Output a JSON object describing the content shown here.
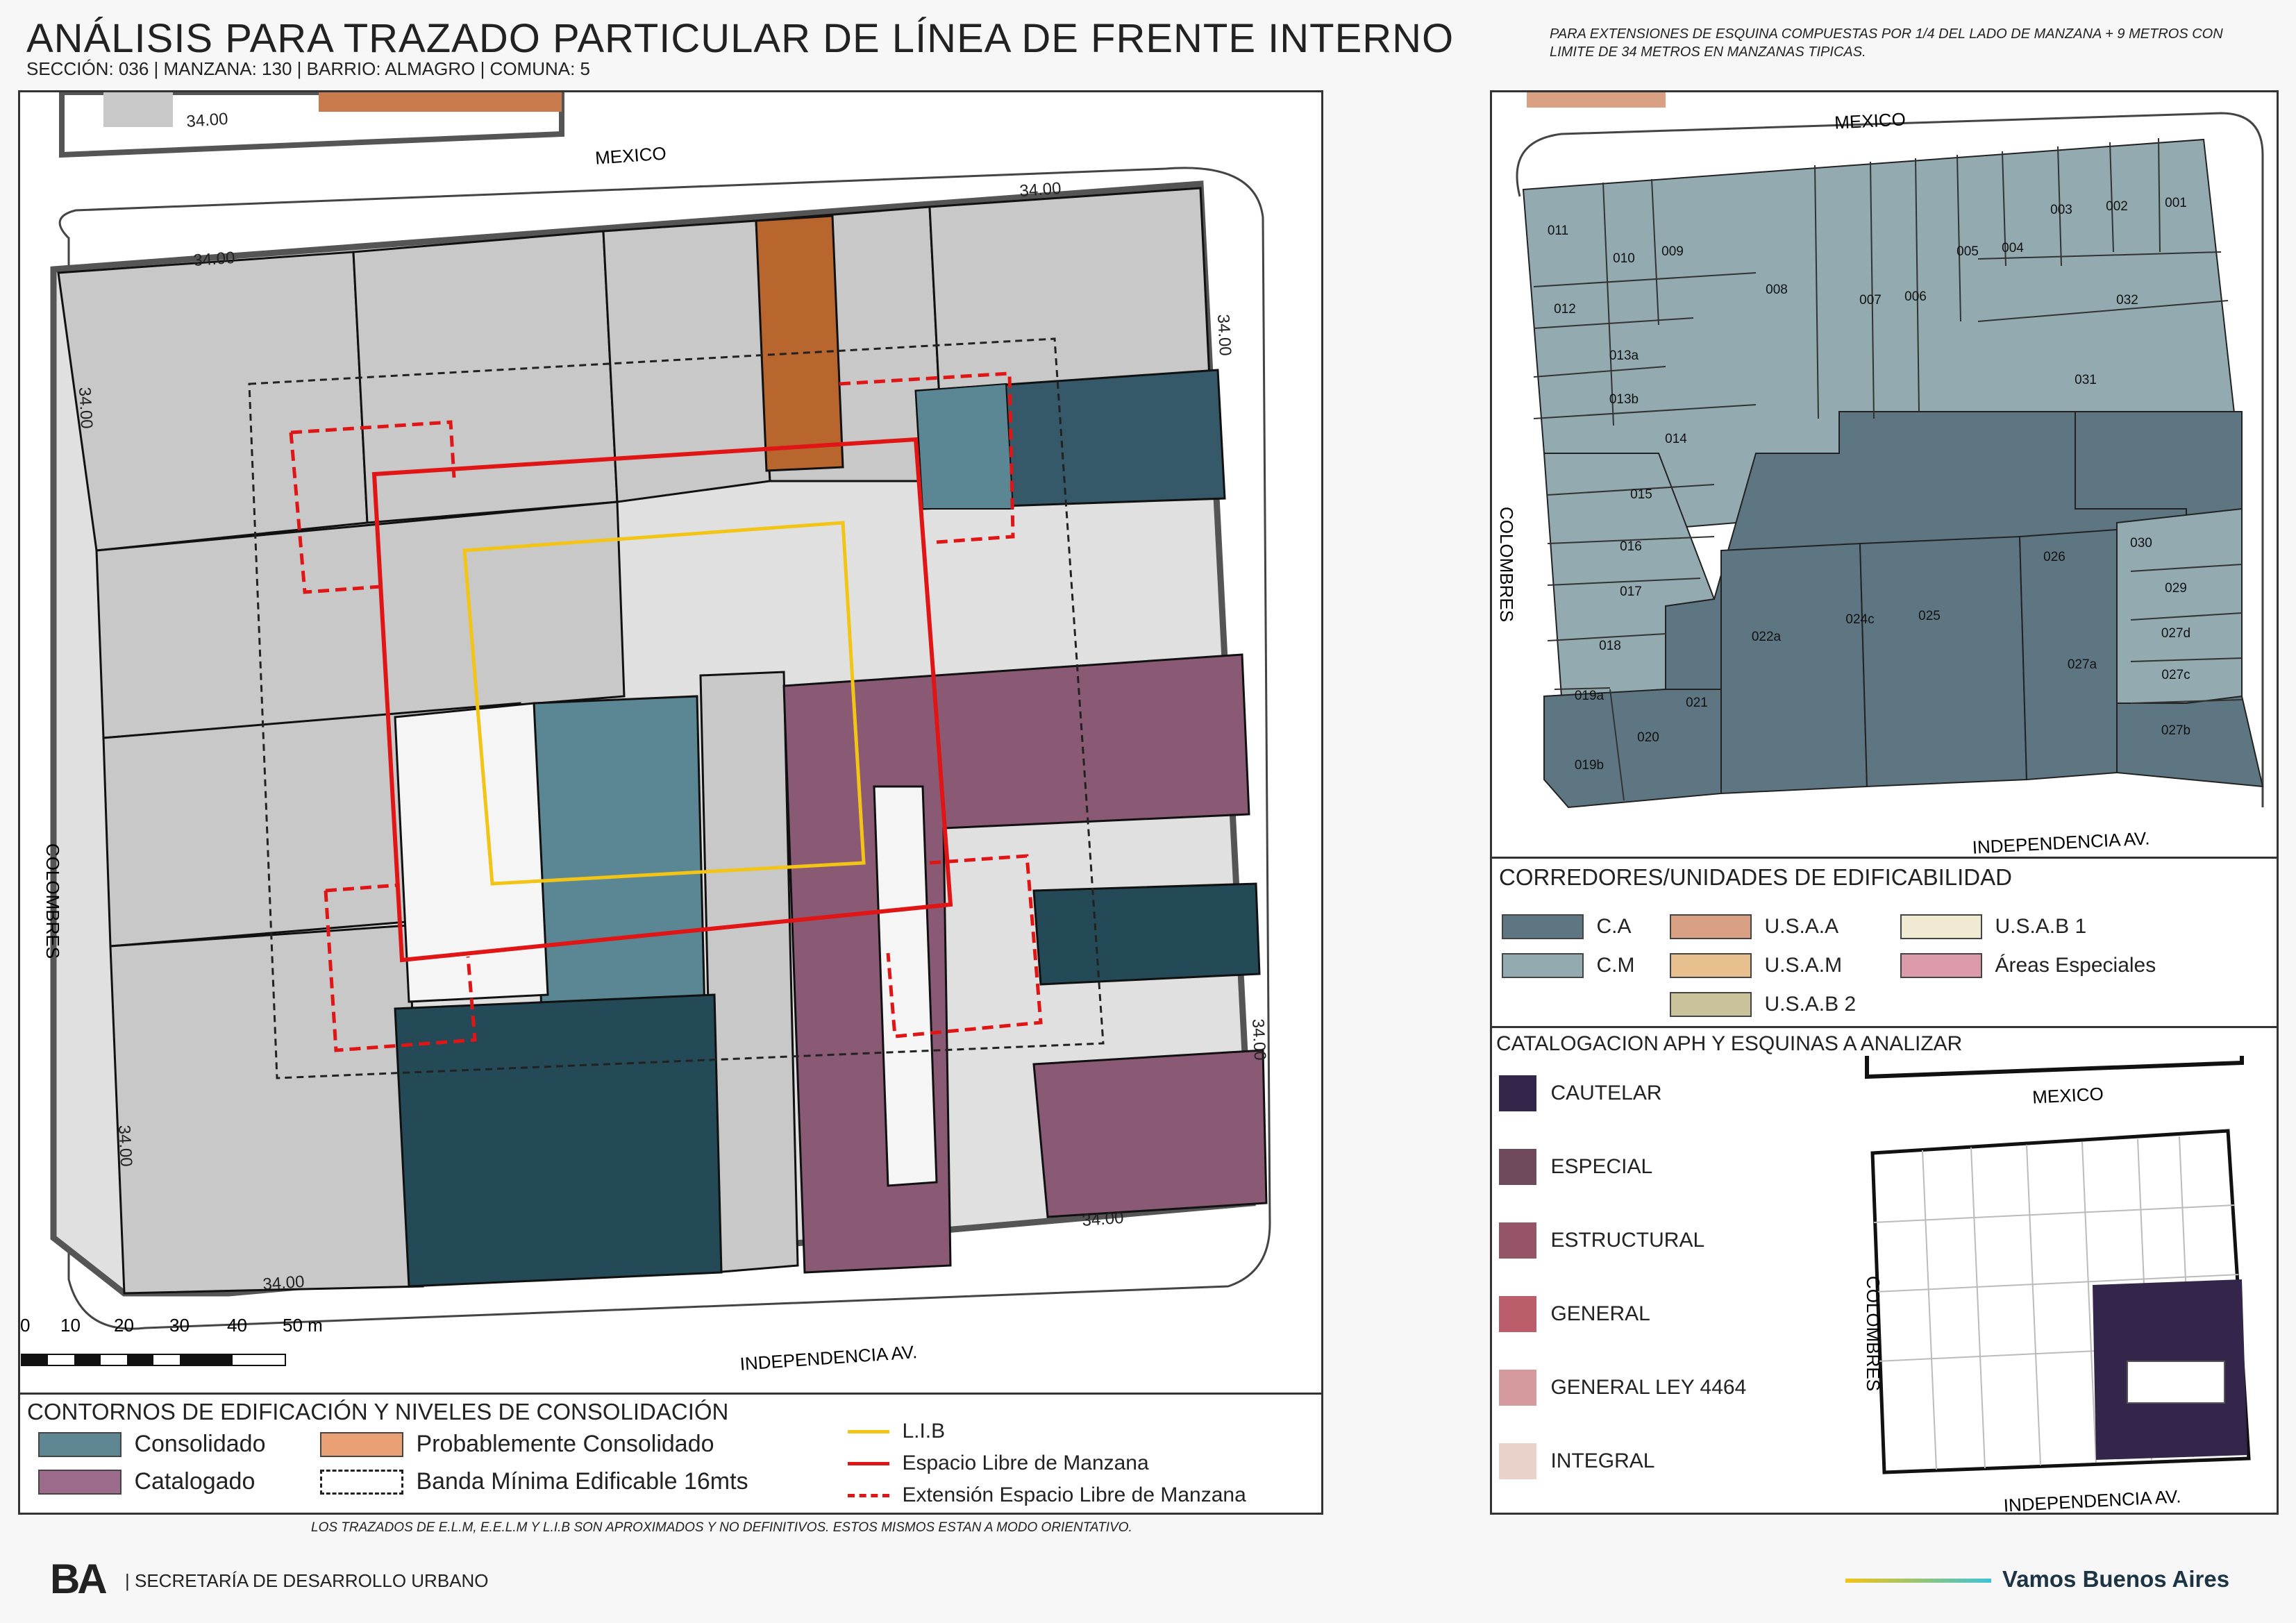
{
  "header": {
    "title": "ANÁLISIS PARA TRAZADO PARTICULAR DE LÍNEA DE FRENTE INTERNO",
    "subtitle": "SECCIÓN: 036 |  MANZANA: 130 | BARRIO: ALMAGRO | COMUNA: 5",
    "note": "PARA EXTENSIONES DE ESQUINA COMPUESTAS POR 1/4 DEL LADO DE MANZANA + 9 METROS CON LIMITE DE 34 METROS EN MANZANAS TIPICAS."
  },
  "main_map": {
    "streets": {
      "top": "MEXICO",
      "bottom": "INDEPENDENCIA AV.",
      "left": "COLOMBRES"
    },
    "corner_label": "34.00",
    "scale": {
      "ticks": [
        "0",
        "10",
        "20",
        "30",
        "40",
        "50 m"
      ]
    }
  },
  "main_legend": {
    "heading": "CONTORNOS DE EDIFICACIÓN Y NIVELES DE CONSOLIDACIÓN",
    "items": [
      {
        "label": "Consolidado",
        "color": "#5e8793"
      },
      {
        "label": "Probablemente Consolidado",
        "color": "#e8a074"
      },
      {
        "label": "Catalogado",
        "color": "#9d6b8c"
      },
      {
        "label": "Banda Mínima Edificable 16mts",
        "color": "#ffffff"
      }
    ],
    "lines": [
      {
        "label": "L.I.B",
        "color": "#f2c415"
      },
      {
        "label": "Espacio Libre de Manzana",
        "color": "#e01515"
      },
      {
        "label": "Extensión Espacio Libre de Manzana",
        "color": "#e01515"
      }
    ],
    "footnote": "LOS TRAZADOS DE E.L.M, E.E.L.M Y L.I.B SON APROXIMADOS Y NO DEFINITIVOS. ESTOS MISMOS ESTAN A MODO ORIENTATIVO."
  },
  "parcel_map": {
    "streets": {
      "top": "MEXICO",
      "bottom": "INDEPENDENCIA AV.",
      "left": "COLOMBRES"
    },
    "parcels": [
      "011",
      "010",
      "009",
      "008",
      "007",
      "006",
      "005",
      "004",
      "003",
      "002",
      "001",
      "012",
      "032",
      "013a",
      "013b",
      "031",
      "014",
      "015",
      "016",
      "017",
      "018",
      "019a",
      "019b",
      "020",
      "021",
      "022a",
      "024c",
      "025",
      "026",
      "030",
      "029",
      "027d",
      "027c",
      "027a",
      "027b"
    ]
  },
  "corredores": {
    "heading": "CORREDORES/UNIDADES DE EDIFICABILIDAD",
    "items": [
      {
        "label": "C.A",
        "color": "#5e7682"
      },
      {
        "label": "C.M",
        "color": "#92aab0"
      },
      {
        "label": "U.S.A.A",
        "color": "#d9a084"
      },
      {
        "label": "U.S.A.M",
        "color": "#e8c08f"
      },
      {
        "label": "U.S.A.B 2",
        "color": "#c9c29a"
      },
      {
        "label": "U.S.A.B 1",
        "color": "#f0ead2"
      },
      {
        "label": "Áreas Especiales",
        "color": "#dc9bab"
      }
    ]
  },
  "catalogacion": {
    "heading": "CATALOGACION APH Y ESQUINAS A ANALIZAR",
    "items": [
      {
        "label": "CAUTELAR",
        "color": "#33264a"
      },
      {
        "label": "ESPECIAL",
        "color": "#6e4a5c"
      },
      {
        "label": "ESTRUCTURAL",
        "color": "#955566"
      },
      {
        "label": "GENERAL",
        "color": "#bb5d6a"
      },
      {
        "label": "GENERAL LEY 4464",
        "color": "#d49a9e"
      },
      {
        "label": "INTEGRAL",
        "color": "#ead1c9"
      }
    ],
    "mini_streets": {
      "top": "MEXICO",
      "bottom": "INDEPENDENCIA AV.",
      "left": "COLOMBRES"
    }
  },
  "footer": {
    "logo": "BA",
    "org": "| SECRETARÍA DE DESARROLLO URBANO",
    "slogan": "Vamos Buenos Aires"
  }
}
